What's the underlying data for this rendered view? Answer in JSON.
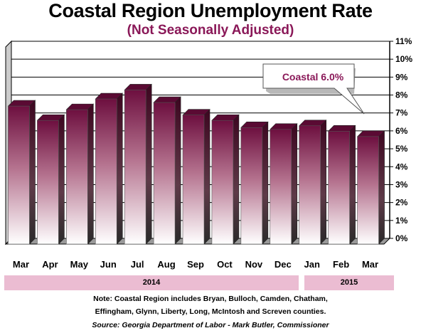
{
  "chart_data": {
    "type": "bar",
    "title": "Coastal Region Unemployment Rate",
    "subtitle": "(Not Seasonally Adjusted)",
    "categories": [
      "Mar",
      "Apr",
      "May",
      "Jun",
      "Jul",
      "Aug",
      "Sep",
      "Oct",
      "Nov",
      "Dec",
      "Jan",
      "Feb",
      "Mar"
    ],
    "series": [
      {
        "values": [
          7.7,
          6.9,
          7.5,
          8.1,
          8.6,
          7.9,
          7.2,
          6.9,
          6.5,
          6.4,
          6.6,
          6.3,
          6.0
        ]
      }
    ],
    "ylim": [
      0,
      11
    ],
    "yticks": [
      "0%",
      "1%",
      "2%",
      "3%",
      "4%",
      "5%",
      "6%",
      "7%",
      "8%",
      "9%",
      "10%",
      "11%"
    ],
    "grid": true,
    "year_groups": [
      {
        "label": "2014",
        "count": 10
      },
      {
        "label": "2015",
        "count": 3
      }
    ],
    "callout": "Coastal 6.0%",
    "colors": {
      "bar_dark": "#6d0f3f",
      "bar_light": "#ffffff",
      "accent": "#8a1858",
      "band": "#ebbcd2"
    }
  },
  "footer": {
    "note_line1": "Note: Coastal Region includes Bryan, Bulloch, Camden, Chatham,",
    "note_line2": "Effingham, Glynn, Liberty, Long, McIntosh and Screven counties.",
    "source": "Source: Georgia Department of Labor - Mark Butler, Commissioner"
  }
}
